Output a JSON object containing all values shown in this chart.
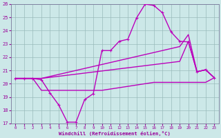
{
  "bg_color": "#cce8e8",
  "line_color": "#bb00bb",
  "grid_color": "#99bbbb",
  "text_color": "#990099",
  "xlabel": "Windchill (Refroidissement éolien,°C)",
  "xlim": [
    -0.5,
    23.5
  ],
  "ylim": [
    17,
    26
  ],
  "yticks": [
    17,
    18,
    19,
    20,
    21,
    22,
    23,
    24,
    25,
    26
  ],
  "xticks": [
    0,
    1,
    2,
    3,
    4,
    5,
    6,
    7,
    8,
    9,
    10,
    11,
    12,
    13,
    14,
    15,
    16,
    17,
    18,
    19,
    20,
    21,
    22,
    23
  ],
  "curve_main_x": [
    0,
    1,
    2,
    3,
    4,
    5,
    6,
    7,
    8,
    9,
    10,
    11,
    12,
    13,
    14,
    15,
    16,
    17,
    18,
    19,
    20,
    21,
    22,
    23
  ],
  "curve_main_y": [
    20.4,
    20.4,
    20.4,
    20.3,
    19.3,
    18.4,
    17.1,
    17.1,
    18.8,
    19.25,
    22.5,
    22.5,
    23.2,
    23.35,
    24.95,
    26.0,
    25.9,
    25.35,
    23.9,
    23.2,
    23.15,
    20.9,
    21.05,
    20.45
  ],
  "curve_upper_x": [
    0,
    1,
    2,
    3,
    4,
    5,
    6,
    7,
    8,
    9,
    10,
    11,
    12,
    13,
    14,
    15,
    16,
    17,
    18,
    19,
    20,
    21,
    22,
    23
  ],
  "curve_upper_y": [
    20.4,
    20.4,
    20.4,
    20.4,
    20.55,
    20.7,
    20.85,
    21.0,
    21.15,
    21.3,
    21.45,
    21.6,
    21.75,
    21.9,
    22.05,
    22.2,
    22.35,
    22.5,
    22.65,
    22.8,
    23.7,
    20.9,
    21.05,
    20.45
  ],
  "curve_mid_x": [
    0,
    1,
    2,
    3,
    4,
    5,
    6,
    7,
    8,
    9,
    10,
    11,
    12,
    13,
    14,
    15,
    16,
    17,
    18,
    19,
    20,
    21,
    22,
    23
  ],
  "curve_mid_y": [
    20.4,
    20.4,
    20.4,
    20.4,
    20.48,
    20.56,
    20.64,
    20.72,
    20.8,
    20.88,
    20.96,
    21.04,
    21.12,
    21.2,
    21.28,
    21.36,
    21.44,
    21.52,
    21.6,
    21.68,
    23.2,
    20.9,
    21.05,
    20.45
  ],
  "curve_flat_x": [
    0,
    1,
    2,
    3,
    4,
    5,
    6,
    7,
    8,
    9,
    10,
    11,
    12,
    13,
    14,
    15,
    16,
    17,
    18,
    19,
    20,
    21,
    22,
    23
  ],
  "curve_flat_y": [
    20.4,
    20.4,
    20.4,
    19.5,
    19.5,
    19.5,
    19.5,
    19.5,
    19.5,
    19.5,
    19.5,
    19.6,
    19.7,
    19.8,
    19.9,
    20.0,
    20.1,
    20.1,
    20.1,
    20.1,
    20.1,
    20.1,
    20.1,
    20.45
  ]
}
